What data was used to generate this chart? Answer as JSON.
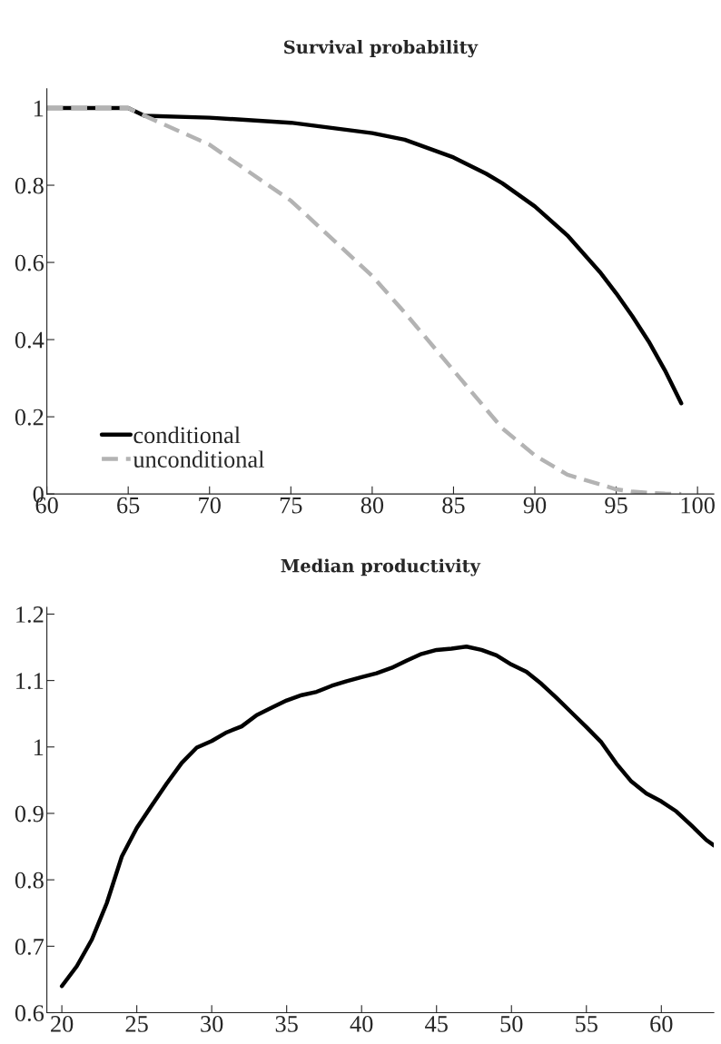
{
  "chart_data": [
    {
      "type": "line",
      "title": "Survival probability",
      "x": [
        60,
        65,
        66,
        70,
        75,
        80,
        82,
        85,
        87,
        88,
        90,
        92,
        94,
        95,
        96,
        97,
        98,
        99
      ],
      "series": [
        {
          "name": "conditional",
          "color": "#000000",
          "line_style": "solid",
          "values": [
            1,
            1,
            0.98,
            0.975,
            0.962,
            0.935,
            0.918,
            0.872,
            0.83,
            0.805,
            0.745,
            0.67,
            0.575,
            0.52,
            0.46,
            0.395,
            0.32,
            0.235
          ]
        },
        {
          "name": "unconditional",
          "color": "#b3b3b3",
          "line_style": "dashed",
          "values": [
            1,
            1,
            0.98,
            0.905,
            0.76,
            0.565,
            0.47,
            0.32,
            0.22,
            0.17,
            0.1,
            0.05,
            0.025,
            0.012,
            0.006,
            0.003,
            0.001,
            0
          ]
        }
      ],
      "xlim": [
        60,
        101
      ],
      "xticks": [
        60,
        65,
        70,
        75,
        80,
        85,
        90,
        95,
        100
      ],
      "ylim": [
        0,
        1.05
      ],
      "yticks": [
        0,
        0.2,
        0.4,
        0.6,
        0.8,
        1
      ],
      "grid": false,
      "legend": "bottom left"
    },
    {
      "type": "line",
      "title": "Median productivity",
      "x": [
        20,
        21,
        22,
        23,
        24,
        25,
        26,
        27,
        28,
        29,
        30,
        31,
        32,
        33,
        34,
        35,
        36,
        37,
        38,
        39,
        40,
        41,
        42,
        43,
        44,
        45,
        46,
        47,
        48,
        49,
        50,
        51,
        52,
        53,
        54,
        55,
        56,
        57,
        58,
        59,
        60,
        61,
        62,
        63,
        63.5
      ],
      "series": [
        {
          "color": "#000000",
          "line_style": "solid",
          "values": [
            0.64,
            0.67,
            0.71,
            0.765,
            0.835,
            0.878,
            0.912,
            0.945,
            0.976,
            0.999,
            1.009,
            1.022,
            1.031,
            1.048,
            1.059,
            1.07,
            1.078,
            1.083,
            1.092,
            1.099,
            1.105,
            1.111,
            1.119,
            1.13,
            1.14,
            1.146,
            1.148,
            1.151,
            1.146,
            1.138,
            1.124,
            1.113,
            1.095,
            1.074,
            1.052,
            1.03,
            1.007,
            0.975,
            0.948,
            0.93,
            0.918,
            0.903,
            0.882,
            0.86,
            0.852
          ]
        }
      ],
      "xlim": [
        19,
        63.5
      ],
      "xticks": [
        20,
        25,
        30,
        35,
        40,
        45,
        50,
        55,
        60
      ],
      "ylim": [
        0.6,
        1.21
      ],
      "yticks": [
        0.6,
        0.7,
        0.8,
        0.9,
        1,
        1.1,
        1.2
      ],
      "grid": false,
      "legend": false
    }
  ]
}
